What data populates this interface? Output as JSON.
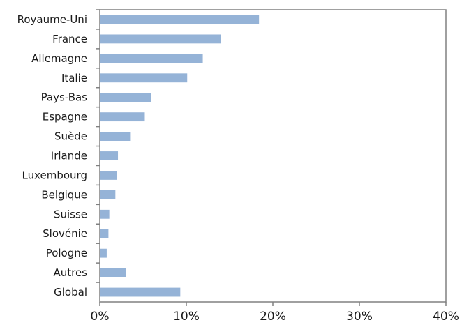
{
  "chart_data": {
    "type": "bar",
    "orientation": "horizontal",
    "categories": [
      "Royaume-Uni",
      "France",
      "Allemagne",
      "Italie",
      "Pays-Bas",
      "Espagne",
      "Suède",
      "Irlande",
      "Luxembourg",
      "Belgique",
      "Suisse",
      "Slovénie",
      "Pologne",
      "Autres",
      "Global"
    ],
    "values": [
      18.4,
      14.0,
      11.9,
      10.1,
      5.9,
      5.2,
      3.5,
      2.1,
      2.0,
      1.8,
      1.1,
      1.0,
      0.8,
      3.0,
      9.3
    ],
    "xlim": [
      0,
      40
    ],
    "xticks": [
      0,
      10,
      20,
      30,
      40
    ],
    "xtick_labels": [
      "0%",
      "10%",
      "20%",
      "30%",
      "40%"
    ],
    "title": "",
    "xlabel": "",
    "ylabel": "",
    "grid": false,
    "legend": "none",
    "bar_color": "#95b3d7",
    "axis_color": "#808080"
  }
}
